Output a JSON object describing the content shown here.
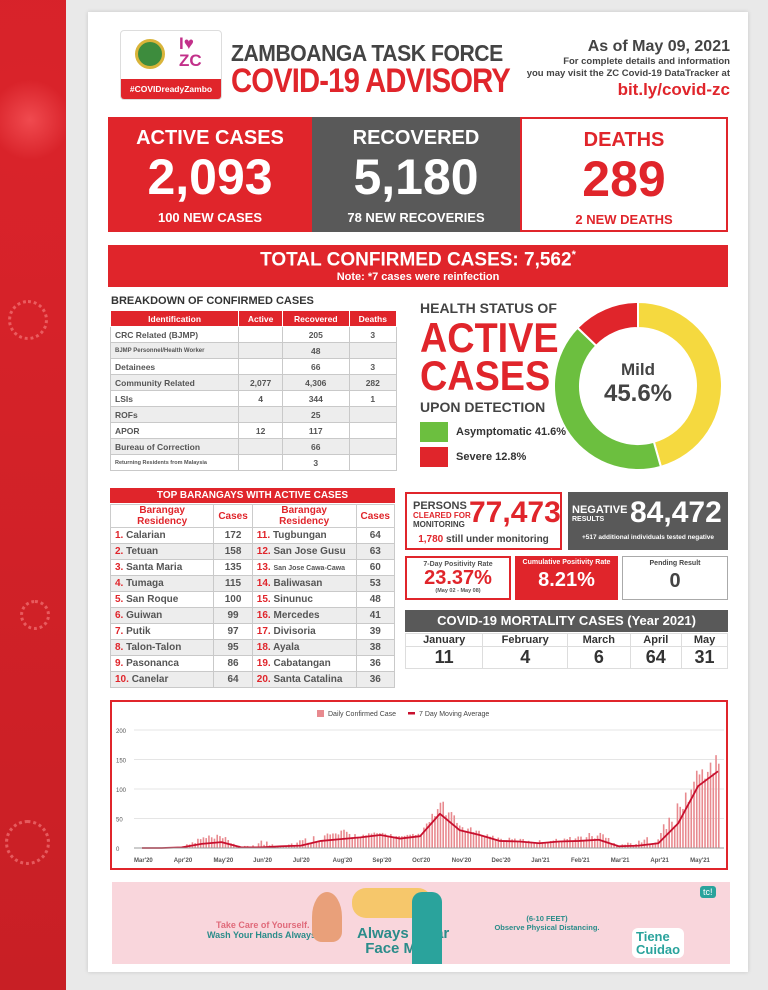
{
  "header": {
    "hashtag": "#COVIDreadyZambo",
    "logo_text": "I ZC",
    "title_line1": "ZAMBOANGA TASK FORCE",
    "title_line2": "COVID-19 ADVISORY",
    "as_of": "As of May 09, 2021",
    "info_line1": "For complete details and information",
    "info_line2": "you may visit the ZC Covid-19 DataTracker at",
    "link": "bit.ly/covid-zc"
  },
  "stats": {
    "active": {
      "label": "ACTIVE CASES",
      "value": "2,093",
      "sub": "100 NEW CASES"
    },
    "recovered": {
      "label": "RECOVERED",
      "value": "5,180",
      "sub": "78 NEW RECOVERIES"
    },
    "deaths": {
      "label": "DEATHS",
      "value": "289",
      "sub": "2 NEW DEATHS"
    }
  },
  "total": {
    "label": "TOTAL CONFIRMED CASES: 7,562",
    "asterisk": "*",
    "note": "Note: *7 cases were reinfection"
  },
  "breakdown": {
    "title": "BREAKDOWN OF CONFIRMED CASES",
    "headers": [
      "Identification",
      "Active",
      "Recovered",
      "Deaths"
    ],
    "rows": [
      [
        "CRC Related (BJMP)",
        "",
        "205",
        "3"
      ],
      [
        "BJMP Personnel/Health Worker",
        "",
        "48",
        ""
      ],
      [
        "Detainees",
        "",
        "66",
        "3"
      ],
      [
        "Community Related",
        "2,077",
        "4,306",
        "282"
      ],
      [
        "LSIs",
        "4",
        "344",
        "1"
      ],
      [
        "ROFs",
        "",
        "25",
        ""
      ],
      [
        "APOR",
        "12",
        "117",
        ""
      ],
      [
        "Bureau of Correction",
        "",
        "66",
        ""
      ],
      [
        "Returning Residents from Malaysia",
        "",
        "3",
        ""
      ]
    ]
  },
  "health": {
    "title": "HEALTH STATUS OF",
    "big1": "ACTIVE",
    "big2": "CASES",
    "sub": "UPON DETECTION",
    "center_label": "Mild",
    "center_value": "45.6%",
    "legend": [
      {
        "label": "Asymptomatic 41.6%",
        "color": "#6cbf3f"
      },
      {
        "label": "Severe 12.8%",
        "color": "#e0252b"
      }
    ],
    "slices": [
      {
        "name": "Mild",
        "pct": 45.6,
        "color": "#f5d93f"
      },
      {
        "name": "Asymptomatic",
        "pct": 41.6,
        "color": "#6cbf3f"
      },
      {
        "name": "Severe",
        "pct": 12.8,
        "color": "#e0252b"
      }
    ]
  },
  "barangays": {
    "title": "TOP BARANGAYS WITH ACTIVE CASES",
    "headers": [
      "Barangay Residency",
      "Cases",
      "Barangay Residency",
      "Cases"
    ],
    "rows": [
      [
        "1.",
        "Calarian",
        "172",
        "11.",
        "Tugbungan",
        "64"
      ],
      [
        "2.",
        "Tetuan",
        "158",
        "12.",
        "San Jose Gusu",
        "63"
      ],
      [
        "3.",
        "Santa Maria",
        "135",
        "13.",
        "San Jose Cawa-Cawa",
        "60"
      ],
      [
        "4.",
        "Tumaga",
        "115",
        "14.",
        "Baliwasan",
        "53"
      ],
      [
        "5.",
        "San Roque",
        "100",
        "15.",
        "Sinunuc",
        "48"
      ],
      [
        "6.",
        "Guiwan",
        "99",
        "16.",
        "Mercedes",
        "41"
      ],
      [
        "7.",
        "Putik",
        "97",
        "17.",
        "Divisoria",
        "39"
      ],
      [
        "8.",
        "Talon-Talon",
        "95",
        "18.",
        "Ayala",
        "38"
      ],
      [
        "9.",
        "Pasonanca",
        "86",
        "19.",
        "Cabatangan",
        "36"
      ],
      [
        "10.",
        "Canelar",
        "64",
        "20.",
        "Santa Catalina",
        "36"
      ]
    ]
  },
  "monitoring": {
    "l1": "PERSONS",
    "l2": "CLEARED FOR",
    "l3": "MONITORING",
    "value": "77,473",
    "sub_num": "1,780",
    "sub_text": " still under monitoring"
  },
  "negative": {
    "l1": "NEGATIVE",
    "l2": "RESULTS",
    "value": "84,472",
    "sub": "+517 additional individuals tested negative"
  },
  "positivity": {
    "seven_day_label": "7-Day Positivity Rate",
    "seven_day_value": "23.37%",
    "seven_day_range": "(May 02 - May 08)",
    "cumulative_label": "Cumulative Positivity Rate",
    "cumulative_value": "8.21%",
    "pending_label": "Pending Result",
    "pending_value": "0"
  },
  "mortality": {
    "title": "COVID-19 MORTALITY CASES (Year 2021)",
    "months": [
      "January",
      "February",
      "March",
      "April",
      "May"
    ],
    "values": [
      "11",
      "4",
      "6",
      "64",
      "31"
    ]
  },
  "chart_data": {
    "type": "bar+line",
    "legend": [
      "Daily Confirmed Case",
      "7 Day Moving Average"
    ],
    "ylim": [
      0,
      200
    ],
    "yticks": [
      "0",
      "50",
      "100",
      "150",
      "200"
    ],
    "xticks": [
      "Mar'20",
      "Apr'20",
      "May'20",
      "Jun'20",
      "Jul'20",
      "Aug'20",
      "Sep'20",
      "Oct'20",
      "Nov'20",
      "Dec'20",
      "Jan'21",
      "Feb'21",
      "Mar'21",
      "Apr'21",
      "May'21"
    ],
    "sample_interval": "semi-monthly from Mar 1 2020 to May 9 2021",
    "moving_average": [
      0,
      0,
      1,
      7,
      10,
      1,
      1,
      3,
      4,
      12,
      15,
      18,
      22,
      16,
      20,
      58,
      30,
      22,
      12,
      11,
      8,
      11,
      12,
      14,
      3,
      4,
      8,
      42,
      105,
      130
    ],
    "daily_peak": [
      0,
      1,
      2,
      28,
      25,
      2,
      20,
      5,
      20,
      30,
      37,
      25,
      30,
      22,
      28,
      92,
      45,
      30,
      20,
      18,
      15,
      18,
      25,
      35,
      10,
      15,
      40,
      90,
      155,
      168
    ],
    "bar_color": "#e88a8f",
    "line_color": "#c8102e"
  },
  "banner": {
    "t1": "Take Care of Yourself.",
    "t2": "Wash Your Hands Always.",
    "t3": "Always Wear",
    "t4": "Face Mask",
    "t5": "(6-10 FEET)",
    "t6": "Observe Physical Distancing.",
    "t7": "Tiene",
    "t8": "Cuidao",
    "t9": "tc!"
  }
}
